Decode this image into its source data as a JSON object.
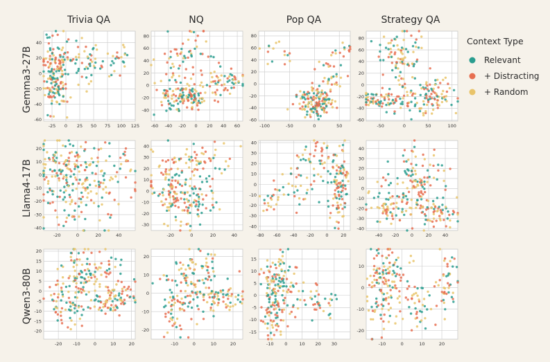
{
  "figure": {
    "columns": [
      "Trivia QA",
      "NQ",
      "Pop QA",
      "Strategy QA"
    ],
    "rows": [
      "Gemma3-27B",
      "Llama4-17B",
      "Qwen3-80B"
    ]
  },
  "legend": {
    "title": "Context Type",
    "items": [
      {
        "label": "Relevant",
        "color": "#2a9d8f"
      },
      {
        "label": "+ Distracting",
        "color": "#e76f51"
      },
      {
        "label": "+ Random",
        "color": "#e9c46a"
      }
    ]
  },
  "chart_data": [
    {
      "type": "scatter",
      "row": "Gemma3-27B",
      "column": "Trivia QA",
      "xlim": [
        -40,
        125
      ],
      "ylim": [
        -62,
        55
      ],
      "xticks": [
        -25,
        0,
        25,
        50,
        75,
        100,
        125
      ],
      "yticks": [
        -60,
        -40,
        -20,
        0,
        20,
        40
      ],
      "clusters": [
        [
          -20,
          10,
          12,
          22,
          100
        ],
        [
          10,
          18,
          30,
          10,
          40
        ],
        [
          60,
          15,
          30,
          18,
          40
        ],
        [
          -15,
          -20,
          12,
          15,
          60
        ],
        [
          95,
          20,
          12,
          5,
          10
        ]
      ]
    },
    {
      "type": "scatter",
      "row": "Gemma3-27B",
      "column": "NQ",
      "xlim": [
        -65,
        68
      ],
      "ylim": [
        -58,
        88
      ],
      "xticks": [
        -60,
        -40,
        -20,
        0,
        20,
        40,
        60
      ],
      "yticks": [
        -40,
        -20,
        0,
        20,
        40,
        60,
        80
      ],
      "clusters": [
        [
          -15,
          -20,
          18,
          12,
          110
        ],
        [
          -25,
          20,
          20,
          25,
          60
        ],
        [
          45,
          5,
          15,
          10,
          50
        ],
        [
          -5,
          60,
          18,
          15,
          30
        ]
      ]
    },
    {
      "type": "scatter",
      "row": "Gemma3-27B",
      "column": "Pop QA",
      "xlim": [
        -112,
        72
      ],
      "ylim": [
        -62,
        88
      ],
      "xticks": [
        -100,
        -50,
        0,
        50
      ],
      "yticks": [
        -60,
        -40,
        -20,
        0,
        20,
        40,
        60,
        80
      ],
      "clusters": [
        [
          5,
          -30,
          18,
          14,
          150
        ],
        [
          -80,
          50,
          20,
          12,
          15
        ],
        [
          55,
          45,
          12,
          14,
          15
        ],
        [
          30,
          10,
          18,
          15,
          25
        ]
      ]
    },
    {
      "type": "scatter",
      "row": "Gemma3-27B",
      "column": "Strategy QA",
      "xlim": [
        -80,
        112
      ],
      "ylim": [
        -62,
        92
      ],
      "xticks": [
        -50,
        0,
        50,
        100
      ],
      "yticks": [
        -60,
        -40,
        -20,
        0,
        20,
        40,
        60,
        80
      ],
      "clusters": [
        [
          -10,
          45,
          22,
          25,
          90
        ],
        [
          -50,
          -25,
          22,
          8,
          70
        ],
        [
          60,
          -15,
          28,
          15,
          70
        ],
        [
          40,
          -30,
          30,
          12,
          40
        ]
      ]
    },
    {
      "type": "scatter",
      "row": "Llama4-17B",
      "column": "Trivia QA",
      "xlim": [
        -33,
        56
      ],
      "ylim": [
        -42,
        26
      ],
      "xticks": [
        -20,
        0,
        20,
        40
      ],
      "yticks": [
        -40,
        -30,
        -20,
        -10,
        0,
        10,
        20
      ],
      "clusters": [
        [
          -15,
          5,
          14,
          12,
          120
        ],
        [
          20,
          0,
          18,
          15,
          100
        ],
        [
          -5,
          -25,
          12,
          8,
          40
        ]
      ]
    },
    {
      "type": "scatter",
      "row": "Llama4-17B",
      "column": "NQ",
      "xlim": [
        -38,
        48
      ],
      "ylim": [
        -35,
        45
      ],
      "xticks": [
        -20,
        0,
        20,
        40
      ],
      "yticks": [
        -30,
        -20,
        -10,
        0,
        10,
        20,
        30,
        40
      ],
      "clusters": [
        [
          0,
          -10,
          14,
          12,
          110
        ],
        [
          -15,
          20,
          12,
          10,
          50
        ],
        [
          15,
          25,
          12,
          10,
          40
        ],
        [
          -25,
          0,
          10,
          8,
          30
        ]
      ]
    },
    {
      "type": "scatter",
      "row": "Llama4-17B",
      "column": "Pop QA",
      "xlim": [
        -82,
        28
      ],
      "ylim": [
        -44,
        42
      ],
      "xticks": [
        -80,
        -60,
        -40,
        -20,
        0,
        20
      ],
      "yticks": [
        -40,
        -30,
        -20,
        -10,
        0,
        10,
        20,
        30,
        40
      ],
      "clusters": [
        [
          15,
          0,
          6,
          18,
          100
        ],
        [
          -10,
          25,
          10,
          8,
          40
        ],
        [
          -40,
          0,
          20,
          12,
          40
        ],
        [
          -65,
          -15,
          8,
          6,
          15
        ]
      ]
    },
    {
      "type": "scatter",
      "row": "Llama4-17B",
      "column": "Strategy QA",
      "xlim": [
        -55,
        55
      ],
      "ylim": [
        -42,
        48
      ],
      "xticks": [
        -40,
        -20,
        0,
        20,
        40
      ],
      "yticks": [
        -40,
        -30,
        -20,
        -10,
        0,
        10,
        20,
        30,
        40
      ],
      "clusters": [
        [
          5,
          10,
          15,
          18,
          110
        ],
        [
          -30,
          -15,
          12,
          10,
          50
        ],
        [
          35,
          -25,
          10,
          6,
          40
        ],
        [
          10,
          -20,
          15,
          10,
          40
        ]
      ]
    },
    {
      "type": "scatter",
      "row": "Qwen3-80B",
      "column": "Trivia QA",
      "xlim": [
        -28,
        22
      ],
      "ylim": [
        -24,
        21
      ],
      "xticks": [
        -20,
        -10,
        0,
        10,
        20
      ],
      "yticks": [
        -20,
        -15,
        -10,
        -5,
        0,
        5,
        10,
        15,
        20
      ],
      "clusters": [
        [
          -8,
          5,
          7,
          9,
          110
        ],
        [
          10,
          -3,
          6,
          5,
          80
        ],
        [
          -18,
          -8,
          5,
          6,
          40
        ],
        [
          5,
          10,
          5,
          5,
          30
        ]
      ]
    },
    {
      "type": "scatter",
      "row": "Qwen3-80B",
      "column": "NQ",
      "xlim": [
        -22,
        25
      ],
      "ylim": [
        -25,
        24
      ],
      "xticks": [
        -10,
        0,
        10,
        20
      ],
      "yticks": [
        -20,
        -10,
        0,
        10,
        20
      ],
      "clusters": [
        [
          -2,
          5,
          7,
          9,
          100
        ],
        [
          15,
          -3,
          6,
          4,
          60
        ],
        [
          -10,
          -10,
          5,
          6,
          40
        ],
        [
          5,
          15,
          4,
          5,
          20
        ]
      ]
    },
    {
      "type": "scatter",
      "row": "Qwen3-80B",
      "column": "Pop QA",
      "xlim": [
        -17,
        40
      ],
      "ylim": [
        -18,
        19
      ],
      "xticks": [
        -10,
        0,
        10,
        20,
        30
      ],
      "yticks": [
        -15,
        -10,
        -5,
        0,
        5,
        10,
        15
      ],
      "clusters": [
        [
          -5,
          2,
          5,
          7,
          150
        ],
        [
          20,
          -2,
          8,
          3,
          40
        ],
        [
          -10,
          -10,
          3,
          4,
          25
        ]
      ]
    },
    {
      "type": "scatter",
      "row": "Qwen3-80B",
      "column": "Strategy QA",
      "xlim": [
        -18,
        28
      ],
      "ylim": [
        -24,
        18
      ],
      "xticks": [
        -10,
        0,
        10,
        20
      ],
      "yticks": [
        -20,
        -10,
        0,
        10
      ],
      "clusters": [
        [
          -10,
          0,
          4,
          9,
          100
        ],
        [
          23,
          5,
          3,
          7,
          40
        ],
        [
          5,
          -8,
          8,
          6,
          60
        ],
        [
          -5,
          10,
          5,
          5,
          30
        ]
      ]
    }
  ]
}
